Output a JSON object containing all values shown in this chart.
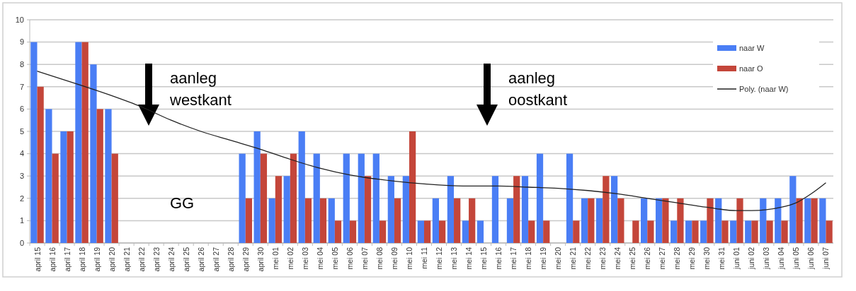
{
  "chart_data": {
    "type": "bar",
    "categories": [
      "april 15",
      "april 16",
      "april 17",
      "april 18",
      "april 19",
      "april 20",
      "april 21",
      "april 22",
      "april 23",
      "april 24",
      "april 25",
      "april 26",
      "april 27",
      "april 28",
      "april 29",
      "april 30",
      "mei 01",
      "mei 02",
      "mei 03",
      "mei 04",
      "mei 05",
      "mei 06",
      "mei 07",
      "mei 08",
      "mei 09",
      "mei 10",
      "mei 11",
      "mei 12",
      "mei 13",
      "mei 14",
      "mei 15",
      "mei 16",
      "mei 17",
      "mei 18",
      "mei 19",
      "mei 20",
      "mei 21",
      "mei 22",
      "mei 23",
      "mei 24",
      "mei 25",
      "mei 26",
      "mei 27",
      "mei 28",
      "mei 29",
      "mei 30",
      "mei 31",
      "juni 01",
      "juni 02",
      "juni 03",
      "juni 04",
      "juni 05",
      "juni 06",
      "juni 07"
    ],
    "series": [
      {
        "name": "naar W",
        "color": "#4a7ef5",
        "values": [
          9,
          6,
          5,
          9,
          8,
          6,
          null,
          null,
          null,
          null,
          null,
          null,
          null,
          null,
          4,
          5,
          2,
          3,
          5,
          4,
          2,
          4,
          4,
          4,
          3,
          3,
          1,
          2,
          3,
          1,
          1,
          3,
          2,
          3,
          4,
          0,
          4,
          2,
          2,
          3,
          0,
          2,
          2,
          1,
          1,
          1,
          2,
          1,
          1,
          2,
          2,
          3,
          2,
          2
        ]
      },
      {
        "name": "naar O",
        "color": "#c4463a",
        "values": [
          7,
          4,
          5,
          9,
          6,
          4,
          null,
          null,
          null,
          null,
          null,
          null,
          null,
          null,
          2,
          4,
          3,
          4,
          2,
          2,
          1,
          1,
          3,
          1,
          2,
          5,
          1,
          1,
          2,
          2,
          0,
          0,
          3,
          1,
          1,
          0,
          1,
          2,
          3,
          2,
          1,
          1,
          2,
          2,
          1,
          2,
          1,
          2,
          1,
          1,
          1,
          2,
          2,
          1
        ]
      },
      {
        "name": "Poly. (naar W)",
        "type": "line",
        "color": "#222222",
        "x": [
          "april 15",
          "april 18",
          "april 20",
          "april 22",
          "april 24",
          "april 26",
          "april 28",
          "april 30",
          "mei 02",
          "mei 04",
          "mei 06",
          "mei 08",
          "mei 10",
          "mei 12",
          "mei 14",
          "mei 16",
          "mei 18",
          "mei 20",
          "mei 22",
          "mei 24",
          "mei 26",
          "mei 28",
          "mei 30",
          "juni 01",
          "juni 02",
          "juni 04",
          "juni 05",
          "juni 06",
          "juni 07"
        ],
        "values": [
          7.7,
          7.05,
          6.6,
          6.1,
          5.5,
          5.0,
          4.6,
          4.2,
          3.75,
          3.35,
          3.05,
          2.85,
          2.7,
          2.6,
          2.55,
          2.55,
          2.5,
          2.45,
          2.35,
          2.2,
          2.0,
          1.8,
          1.6,
          1.45,
          1.45,
          1.6,
          1.8,
          2.2,
          2.7
        ]
      }
    ],
    "ylim": [
      0,
      10
    ],
    "yticks": [
      0,
      1,
      2,
      3,
      4,
      5,
      6,
      7,
      8,
      9,
      10
    ],
    "grid": "y",
    "legend": "top right",
    "annotations": [
      "aanleg\nwestkant",
      "aanleg\noostkant",
      "GG"
    ]
  }
}
